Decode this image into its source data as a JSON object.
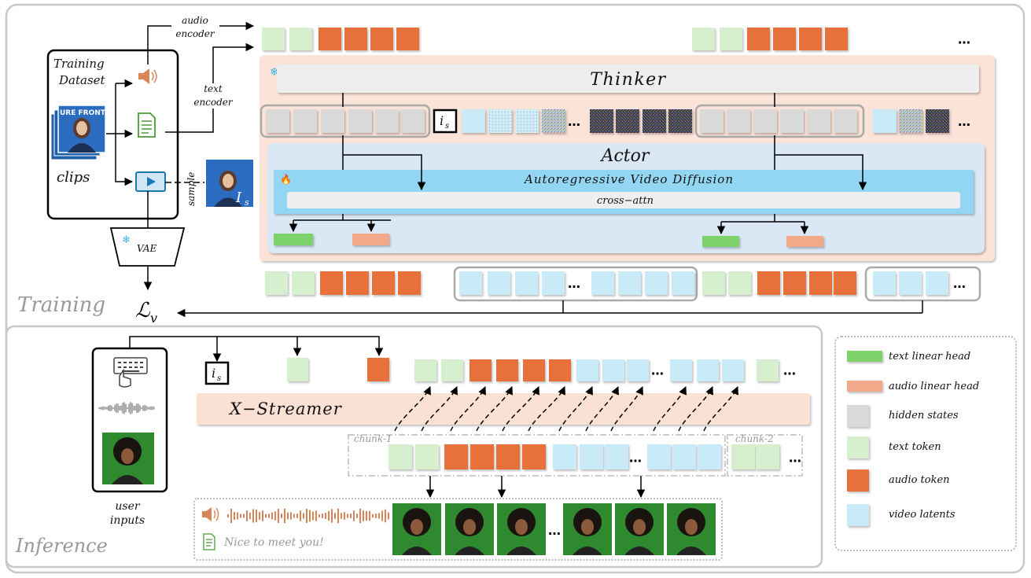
{
  "training": {
    "section_label": "Training",
    "dataset_title_line1": "Training",
    "dataset_title_line2": "Dataset",
    "clips_label": "clips",
    "clip_thumb_text": "URE FRONTI",
    "audio_encoder_line1": "audio",
    "audio_encoder_line2": "encoder",
    "text_encoder_line1": "text",
    "text_encoder_line2": "encoder",
    "sample_label": "sample",
    "sample_image_label": "I",
    "sample_image_sub": "s",
    "vae_label": "VAE",
    "loss_label": "ℒ",
    "loss_sub": "v",
    "thinker_label": "Thinker",
    "actor_label": "Actor",
    "diffusion_label": "Autoregressive Video Diffusion",
    "cross_attn_label": "cross−attn",
    "is_token_label": "i",
    "is_token_sub": "s",
    "ellipsis": "…"
  },
  "inference": {
    "section_label": "Inference",
    "user_inputs_line1": "user",
    "user_inputs_line2": "inputs",
    "is_token_label": "i",
    "is_token_sub": "s",
    "streamer_label": "X−Streamer",
    "chunk1_label": "chunk-1",
    "chunk2_label": "chunk-2",
    "output_text": "Nice to meet you!",
    "ellipsis": "…"
  },
  "legend": {
    "items": [
      {
        "label": "text linear head",
        "color": "#7dd36b"
      },
      {
        "label": "audio linear head",
        "color": "#f2a98a"
      },
      {
        "label": "hidden states",
        "color": "#d9d9d9"
      },
      {
        "label": "text token",
        "color": "#d6f0cf"
      },
      {
        "label": "audio token",
        "color": "#e8703a"
      },
      {
        "label": "video latents",
        "color": "#c9ebf8"
      }
    ]
  },
  "colors": {
    "text_token": "#d6f0cf",
    "audio_token": "#e8703a",
    "video_latent": "#c9ebf8",
    "hidden_state": "#d9d9d9",
    "thinker_panel": "#fbe3d8",
    "actor_panel": "#dae8f6",
    "diffusion_bar": "#93d6f3",
    "streamer_bar": "#fbe1d4"
  }
}
